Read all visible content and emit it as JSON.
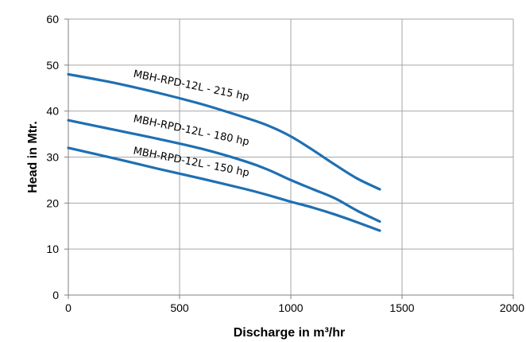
{
  "chart_data": {
    "type": "line",
    "title": "",
    "xlabel": "Discharge in m³/hr",
    "ylabel": "Head in Mtr.",
    "xlim": [
      0,
      2000
    ],
    "ylim": [
      0,
      60
    ],
    "x_ticks": [
      0,
      500,
      1000,
      1500,
      2000
    ],
    "y_ticks": [
      0,
      10,
      20,
      30,
      40,
      50,
      60
    ],
    "grid": true,
    "legend": "none",
    "line_color": "#1f6fb2",
    "series": [
      {
        "name": "MBH-RPD-12L - 215 hp",
        "x": [
          0,
          200,
          400,
          600,
          800,
          900,
          1000,
          1100,
          1200,
          1300,
          1400
        ],
        "y": [
          48,
          46.2,
          44,
          41.5,
          38.5,
          36.8,
          34.5,
          31.5,
          28.3,
          25.3,
          23
        ]
      },
      {
        "name": "MBH-RPD-12L - 180 hp",
        "x": [
          0,
          200,
          400,
          600,
          800,
          900,
          1000,
          1100,
          1200,
          1300,
          1400
        ],
        "y": [
          38,
          36,
          34,
          31.8,
          29,
          27.2,
          25,
          23,
          21,
          18.3,
          16
        ]
      },
      {
        "name": "MBH-RPD-12L - 150 hp",
        "x": [
          0,
          200,
          400,
          600,
          800,
          900,
          1000,
          1100,
          1200,
          1300,
          1400
        ],
        "y": [
          32,
          29.8,
          27.5,
          25.3,
          23,
          21.7,
          20.3,
          19,
          17.5,
          15.8,
          14
        ]
      }
    ]
  }
}
